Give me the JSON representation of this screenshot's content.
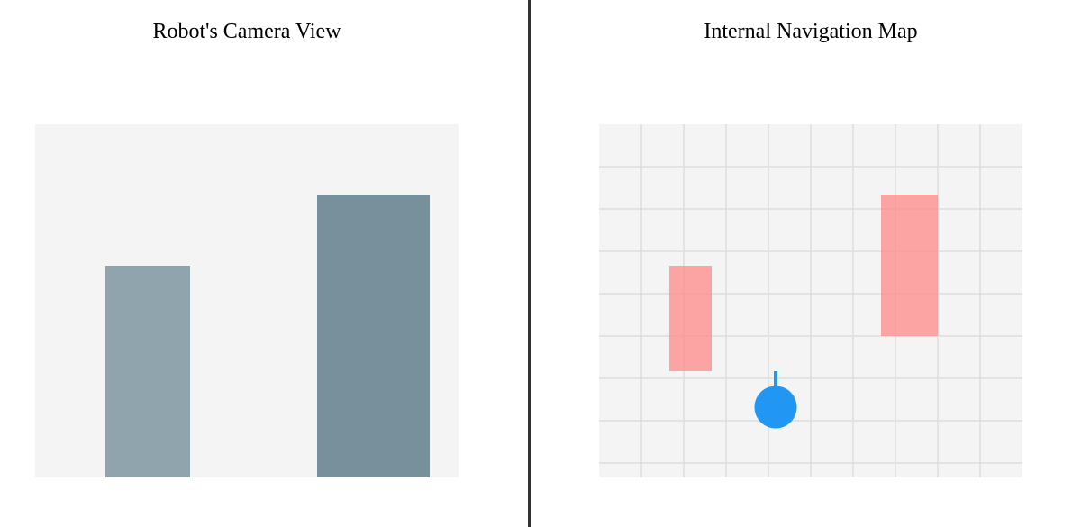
{
  "camera_panel": {
    "title": "Robot's Camera View",
    "background_color": "#f4f4f4",
    "objects": [
      {
        "name": "near-left-obstacle",
        "color": "#90a4ae"
      },
      {
        "name": "near-right-obstacle",
        "color": "#78909c"
      }
    ]
  },
  "map_panel": {
    "title": "Internal Navigation Map",
    "background_color": "#f4f4f4",
    "grid_color": "#dddddd",
    "obstacle_color": "#ff8a8a",
    "robot_color": "#2196f3",
    "obstacles": [
      {
        "name": "obstacle-left"
      },
      {
        "name": "obstacle-right"
      }
    ],
    "robot": {
      "heading": "up"
    }
  }
}
